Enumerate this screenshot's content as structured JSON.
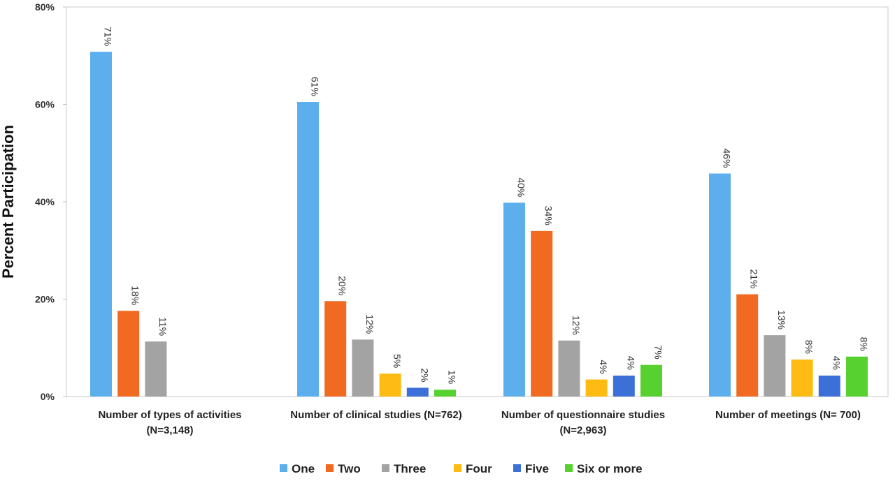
{
  "chart_data": {
    "type": "bar",
    "ylabel": "Percent Participation",
    "ylim": [
      0,
      80
    ],
    "yticks": [
      0,
      20,
      40,
      60,
      80
    ],
    "ytick_labels": [
      "0%",
      "20%",
      "40%",
      "60%",
      "80%"
    ],
    "grid": false,
    "legend_position": "bottom",
    "categories": [
      [
        "Number of types of activities",
        "(N=3,148)"
      ],
      [
        "Number of clinical studies (N=762)"
      ],
      [
        "Number of questionnaire studies",
        "(N=2,963)"
      ],
      [
        "Number of meetings (N= 700)"
      ]
    ],
    "series": [
      {
        "name": "One",
        "color": "#5daeed",
        "values": [
          70.8,
          60.5,
          39.8,
          45.8
        ],
        "labels": [
          "71%",
          "61%",
          "40%",
          "46%"
        ]
      },
      {
        "name": "Two",
        "color": "#f06a21",
        "values": [
          17.6,
          19.6,
          34,
          21
        ],
        "labels": [
          "18%",
          "20%",
          "34%",
          "21%"
        ]
      },
      {
        "name": "Three",
        "color": "#a3a3a3",
        "values": [
          11.3,
          11.7,
          11.5,
          12.6
        ],
        "labels": [
          "11%",
          "12%",
          "12%",
          "13%"
        ]
      },
      {
        "name": "Four",
        "color": "#fdbb13",
        "values": [
          null,
          4.7,
          3.5,
          7.6
        ],
        "labels": [
          null,
          "5%",
          "4%",
          "8%"
        ]
      },
      {
        "name": "Five",
        "color": "#3d6fd8",
        "values": [
          null,
          1.8,
          4.3,
          4.3
        ],
        "labels": [
          null,
          "2%",
          "4%",
          "4%"
        ]
      },
      {
        "name": "Six or more",
        "color": "#56d12f",
        "values": [
          null,
          1.4,
          6.5,
          8.2
        ],
        "labels": [
          null,
          "1%",
          "7%",
          "8%"
        ]
      }
    ]
  }
}
